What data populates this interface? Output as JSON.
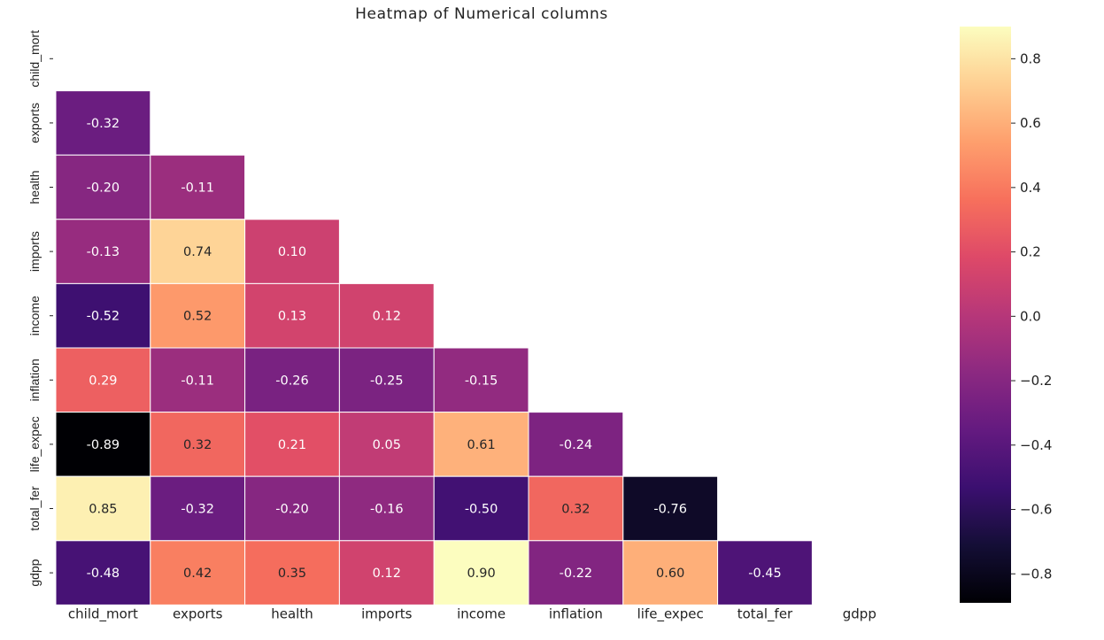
{
  "chart_data": {
    "type": "heatmap",
    "title": "Heatmap of Numerical columns",
    "row_labels": [
      "child_mort",
      "exports",
      "health",
      "imports",
      "income",
      "inflation",
      "life_expec",
      "total_fer",
      "gdpp"
    ],
    "col_labels": [
      "child_mort",
      "exports",
      "health",
      "imports",
      "income",
      "inflation",
      "life_expec",
      "total_fer",
      "gdpp"
    ],
    "mask": "upper-triangle-including-diagonal",
    "values": [
      [],
      [
        -0.32
      ],
      [
        -0.2,
        -0.11
      ],
      [
        -0.13,
        0.74,
        0.1
      ],
      [
        -0.52,
        0.52,
        0.13,
        0.12
      ],
      [
        0.29,
        -0.11,
        -0.26,
        -0.25,
        -0.15
      ],
      [
        -0.89,
        0.32,
        0.21,
        0.05,
        0.61,
        -0.24
      ],
      [
        0.85,
        -0.32,
        -0.2,
        -0.16,
        -0.5,
        0.32,
        -0.76
      ],
      [
        -0.48,
        0.42,
        0.35,
        0.12,
        0.9,
        -0.22,
        0.6,
        -0.45
      ]
    ],
    "colormap": "magma",
    "colorbar": {
      "min": -0.89,
      "max": 0.9,
      "ticks": [
        0.8,
        0.6,
        0.4,
        0.2,
        0.0,
        -0.2,
        -0.4,
        -0.6,
        -0.8
      ],
      "tick_labels": [
        "0.8",
        "0.6",
        "0.4",
        "0.2",
        "0.0",
        "−0.2",
        "−0.4",
        "−0.6",
        "−0.8"
      ]
    },
    "legend_placement": "right"
  }
}
